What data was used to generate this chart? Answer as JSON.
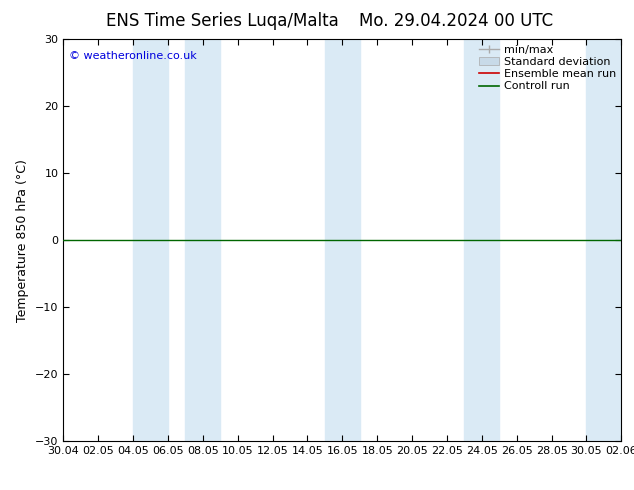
{
  "title_left": "ENS Time Series Luqa/Malta",
  "title_right": "Mo. 29.04.2024 00 UTC",
  "ylabel": "Temperature 850 hPa (°C)",
  "xlabel_ticks": [
    "30.04",
    "02.05",
    "04.05",
    "06.05",
    "08.05",
    "10.05",
    "12.05",
    "14.05",
    "16.05",
    "18.05",
    "20.05",
    "22.05",
    "24.05",
    "26.05",
    "28.05",
    "30.05",
    "02.06"
  ],
  "xlim": [
    0,
    16
  ],
  "ylim": [
    -30,
    30
  ],
  "yticks": [
    -30,
    -20,
    -10,
    0,
    10,
    20,
    30
  ],
  "bg_color": "#ffffff",
  "plot_bg_color": "#ffffff",
  "watermark": "© weatheronline.co.uk",
  "watermark_color": "#0000dd",
  "zero_line_color": "#006600",
  "shade_color": "#daeaf5",
  "shade_positions": [
    [
      2.0,
      3.0
    ],
    [
      3.5,
      4.5
    ],
    [
      7.5,
      8.5
    ],
    [
      11.5,
      12.5
    ],
    [
      15.0,
      16.0
    ]
  ],
  "legend_entries": [
    {
      "label": "min/max",
      "color": "#aaaaaa",
      "style": "errorbar"
    },
    {
      "label": "Standard deviation",
      "color": "#c8dae8",
      "style": "box"
    },
    {
      "label": "Ensemble mean run",
      "color": "#cc0000",
      "style": "line"
    },
    {
      "label": "Controll run",
      "color": "#006600",
      "style": "line"
    }
  ],
  "title_fontsize": 12,
  "tick_fontsize": 8,
  "ylabel_fontsize": 9,
  "legend_fontsize": 8
}
